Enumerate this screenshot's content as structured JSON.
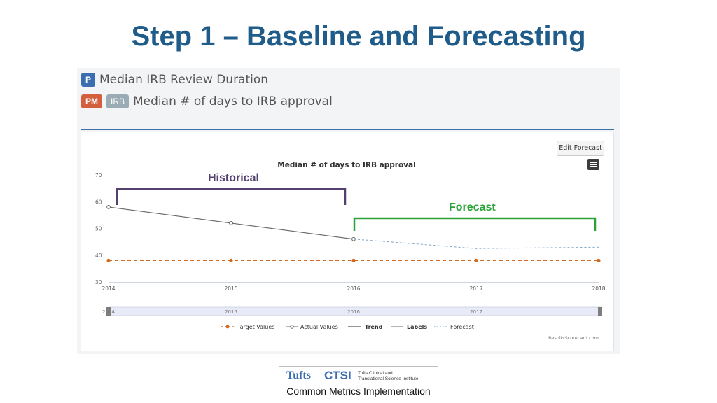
{
  "slide": {
    "title": "Step 1 – Baseline and Forecasting"
  },
  "measure": {
    "p_badge": "P",
    "name": "Median IRB Review Duration",
    "pm_badge": "PM",
    "irb_badge": "IRB",
    "subtitle": "Median # of days to IRB approval"
  },
  "toolbar": {
    "edit_forecast_label": "Edit Forecast"
  },
  "annotations": {
    "historical": "Historical",
    "forecast": "Forecast"
  },
  "chart_data": {
    "type": "line",
    "title": "Median # of days to IRB approval",
    "x": [
      "2014",
      "2015",
      "2016",
      "2017",
      "2018"
    ],
    "xlabel": "",
    "ylabel": "",
    "ylim": [
      30,
      70
    ],
    "yticks": [
      30,
      40,
      50,
      60,
      70
    ],
    "grid": false,
    "legend_position": "bottom",
    "navigator_labels": [
      "2014",
      "2015",
      "2016",
      "2017"
    ],
    "series": [
      {
        "name": "Target Values",
        "style": "dashed-dots",
        "color": "#d2691e",
        "x": [
          "2014",
          "2015",
          "2016",
          "2017",
          "2018"
        ],
        "values": [
          38,
          38,
          38,
          38,
          38
        ]
      },
      {
        "name": "Actual Values",
        "style": "line-open-dots",
        "color": "#666666",
        "x": [
          "2014",
          "2015",
          "2016"
        ],
        "values": [
          58,
          52,
          46
        ]
      },
      {
        "name": "Trend",
        "style": "solid",
        "color": "#555555",
        "x": [],
        "values": []
      },
      {
        "name": "Labels",
        "style": "solid",
        "color": "#888888",
        "x": [],
        "values": []
      },
      {
        "name": "Forecast",
        "style": "dashed",
        "color": "#7ea3c8",
        "x": [
          "2016",
          "2017",
          "2018"
        ],
        "values": [
          46,
          42.5,
          43
        ]
      }
    ],
    "credit": "ResultsScorecard.com"
  },
  "colors": {
    "title": "#1f5c8a",
    "historical_bracket": "#54406f",
    "forecast_bracket": "#2ba33a",
    "target": "#d2691e",
    "actual": "#666666",
    "forecast_line": "#7ea3c8"
  },
  "logo": {
    "tufts": "Tufts",
    "ctsi": "CTSI",
    "subtitle_line1": "Tufts Clinical and",
    "subtitle_line2": "Translational Science Institute",
    "bottom": "Common Metrics Implementation"
  }
}
